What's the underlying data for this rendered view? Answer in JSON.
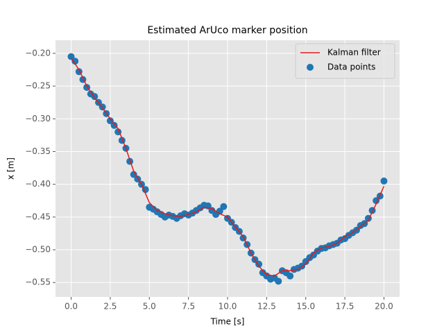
{
  "chart_data": {
    "type": "line",
    "title": "Estimated ArUco marker position",
    "xlabel": "Time [s]",
    "ylabel": "x [m]",
    "xlim": [
      -1.0,
      21.0
    ],
    "ylim": [
      -0.572,
      -0.18
    ],
    "xticks": [
      {
        "value": 0,
        "label": "0.0"
      },
      {
        "value": 2.5,
        "label": "2.5"
      },
      {
        "value": 5,
        "label": "5.0"
      },
      {
        "value": 7.5,
        "label": "7.5"
      },
      {
        "value": 10,
        "label": "10.0"
      },
      {
        "value": 12.5,
        "label": "12.5"
      },
      {
        "value": 15,
        "label": "15.0"
      },
      {
        "value": 17.5,
        "label": "17.5"
      },
      {
        "value": 20,
        "label": "20.0"
      }
    ],
    "yticks": [
      {
        "value": -0.2,
        "label": "−0.20"
      },
      {
        "value": -0.25,
        "label": "−0.25"
      },
      {
        "value": -0.3,
        "label": "−0.30"
      },
      {
        "value": -0.35,
        "label": "−0.35"
      },
      {
        "value": -0.4,
        "label": "−0.40"
      },
      {
        "value": -0.45,
        "label": "−0.45"
      },
      {
        "value": -0.5,
        "label": "−0.50"
      },
      {
        "value": -0.55,
        "label": "−0.55"
      }
    ],
    "grid": true,
    "legend": "upper right",
    "series": [
      {
        "name": "Kalman filter",
        "type": "line",
        "color": "#e41a1c",
        "x": [
          0,
          0.5,
          1,
          1.5,
          2,
          2.5,
          3,
          3.5,
          4,
          4.5,
          5,
          5.5,
          6,
          6.5,
          7,
          7.5,
          8,
          8.5,
          9,
          9.5,
          10,
          10.5,
          11,
          11.5,
          12,
          12.5,
          13,
          13.5,
          14,
          14.5,
          15,
          15.5,
          16,
          16.5,
          17,
          17.5,
          18,
          18.5,
          19,
          19.5,
          20
        ],
        "values": [
          -0.207,
          -0.225,
          -0.25,
          -0.268,
          -0.283,
          -0.3,
          -0.315,
          -0.345,
          -0.38,
          -0.4,
          -0.428,
          -0.44,
          -0.445,
          -0.448,
          -0.449,
          -0.446,
          -0.442,
          -0.435,
          -0.437,
          -0.445,
          -0.45,
          -0.465,
          -0.48,
          -0.505,
          -0.525,
          -0.538,
          -0.54,
          -0.532,
          -0.532,
          -0.53,
          -0.522,
          -0.505,
          -0.497,
          -0.495,
          -0.49,
          -0.48,
          -0.474,
          -0.465,
          -0.455,
          -0.43,
          -0.403
        ]
      },
      {
        "name": "Data points",
        "type": "scatter",
        "color": "#1f77b4",
        "x": [
          0,
          0.25,
          0.5,
          0.75,
          1,
          1.25,
          1.5,
          1.75,
          2,
          2.25,
          2.5,
          2.75,
          3,
          3.25,
          3.5,
          3.75,
          4,
          4.25,
          4.5,
          4.75,
          5,
          5.25,
          5.5,
          5.75,
          6,
          6.25,
          6.5,
          6.75,
          7,
          7.25,
          7.5,
          7.75,
          8,
          8.25,
          8.5,
          8.75,
          9,
          9.25,
          9.5,
          9.75,
          10,
          10.25,
          10.5,
          10.75,
          11,
          11.25,
          11.5,
          11.75,
          12,
          12.25,
          12.5,
          12.75,
          13,
          13.25,
          13.5,
          13.75,
          14,
          14.25,
          14.5,
          14.75,
          15,
          15.25,
          15.5,
          15.75,
          16,
          16.25,
          16.5,
          16.75,
          17,
          17.25,
          17.5,
          17.75,
          18,
          18.25,
          18.5,
          18.75,
          19,
          19.25,
          19.5,
          19.75,
          20
        ],
        "values": [
          -0.205,
          -0.212,
          -0.228,
          -0.24,
          -0.252,
          -0.262,
          -0.266,
          -0.275,
          -0.282,
          -0.292,
          -0.303,
          -0.31,
          -0.32,
          -0.333,
          -0.345,
          -0.365,
          -0.385,
          -0.392,
          -0.4,
          -0.408,
          -0.435,
          -0.438,
          -0.442,
          -0.446,
          -0.45,
          -0.447,
          -0.449,
          -0.452,
          -0.448,
          -0.445,
          -0.447,
          -0.444,
          -0.44,
          -0.436,
          -0.432,
          -0.433,
          -0.44,
          -0.446,
          -0.441,
          -0.434,
          -0.452,
          -0.458,
          -0.466,
          -0.472,
          -0.482,
          -0.492,
          -0.505,
          -0.515,
          -0.522,
          -0.535,
          -0.54,
          -0.545,
          -0.543,
          -0.548,
          -0.532,
          -0.535,
          -0.54,
          -0.53,
          -0.528,
          -0.525,
          -0.518,
          -0.512,
          -0.508,
          -0.502,
          -0.498,
          -0.497,
          -0.494,
          -0.492,
          -0.49,
          -0.485,
          -0.483,
          -0.478,
          -0.474,
          -0.47,
          -0.463,
          -0.46,
          -0.452,
          -0.44,
          -0.425,
          -0.418,
          -0.395
        ]
      }
    ]
  }
}
